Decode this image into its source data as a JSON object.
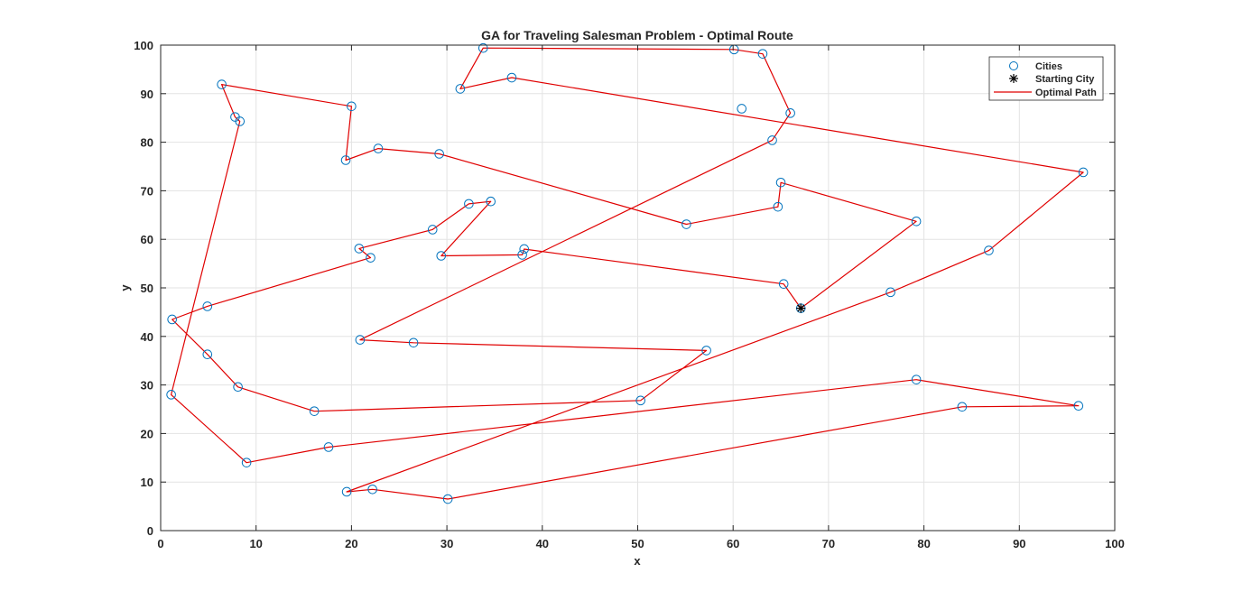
{
  "chart_data": {
    "type": "scatter",
    "title": "GA for Traveling Salesman Problem - Optimal Route",
    "xlabel": "x",
    "ylabel": "y",
    "xlim": [
      0,
      100
    ],
    "ylim": [
      0,
      100
    ],
    "xticks": [
      0,
      10,
      20,
      30,
      40,
      50,
      60,
      70,
      80,
      90,
      100
    ],
    "yticks": [
      0,
      10,
      20,
      30,
      40,
      50,
      60,
      70,
      80,
      90,
      100
    ],
    "grid": true,
    "legend_position": "top-right",
    "legend": [
      "Cities",
      "Starting City",
      "Optimal Path"
    ],
    "colors": {
      "cities": "#0072BD",
      "start": "#000000",
      "path": "#E00000",
      "grid": "#e3e3e3",
      "axis": "#262626"
    },
    "starting_city": [
      67.1,
      45.8
    ],
    "route": [
      [
        67.1,
        45.8
      ],
      [
        65.3,
        50.8
      ],
      [
        38.1,
        58.0
      ],
      [
        37.9,
        56.8
      ],
      [
        29.4,
        56.6
      ],
      [
        34.6,
        67.8
      ],
      [
        32.3,
        67.3
      ],
      [
        28.5,
        62.0
      ],
      [
        20.8,
        58.1
      ],
      [
        22.0,
        56.2
      ],
      [
        4.9,
        46.2
      ],
      [
        1.2,
        43.5
      ],
      [
        4.9,
        36.3
      ],
      [
        8.1,
        29.6
      ],
      [
        16.1,
        24.6
      ],
      [
        50.3,
        26.8
      ],
      [
        57.2,
        37.1
      ],
      [
        26.5,
        38.7
      ],
      [
        20.9,
        39.3
      ],
      [
        64.1,
        80.4
      ],
      [
        66.0,
        86.0
      ],
      [
        63.1,
        98.2
      ],
      [
        60.1,
        99.1
      ],
      [
        33.8,
        99.4
      ],
      [
        31.4,
        91.0
      ],
      [
        36.8,
        93.3
      ],
      [
        96.7,
        73.8
      ],
      [
        86.8,
        57.7
      ],
      [
        76.5,
        49.1
      ],
      [
        19.5,
        8.0
      ],
      [
        22.2,
        8.5
      ],
      [
        30.1,
        6.5
      ],
      [
        84.0,
        25.5
      ],
      [
        96.2,
        25.7
      ],
      [
        79.2,
        31.1
      ],
      [
        17.6,
        17.2
      ],
      [
        9.0,
        14.0
      ],
      [
        1.1,
        28.0
      ],
      [
        8.3,
        84.3
      ],
      [
        7.8,
        85.2
      ],
      [
        6.4,
        91.9
      ],
      [
        20.0,
        87.4
      ],
      [
        19.4,
        76.3
      ],
      [
        22.8,
        78.7
      ],
      [
        29.2,
        77.6
      ],
      [
        55.1,
        63.1
      ],
      [
        64.7,
        66.7
      ],
      [
        65.0,
        71.7
      ],
      [
        79.2,
        63.7
      ],
      [
        67.1,
        45.8
      ]
    ],
    "extra_cities": [
      [
        60.9,
        86.9
      ]
    ]
  }
}
